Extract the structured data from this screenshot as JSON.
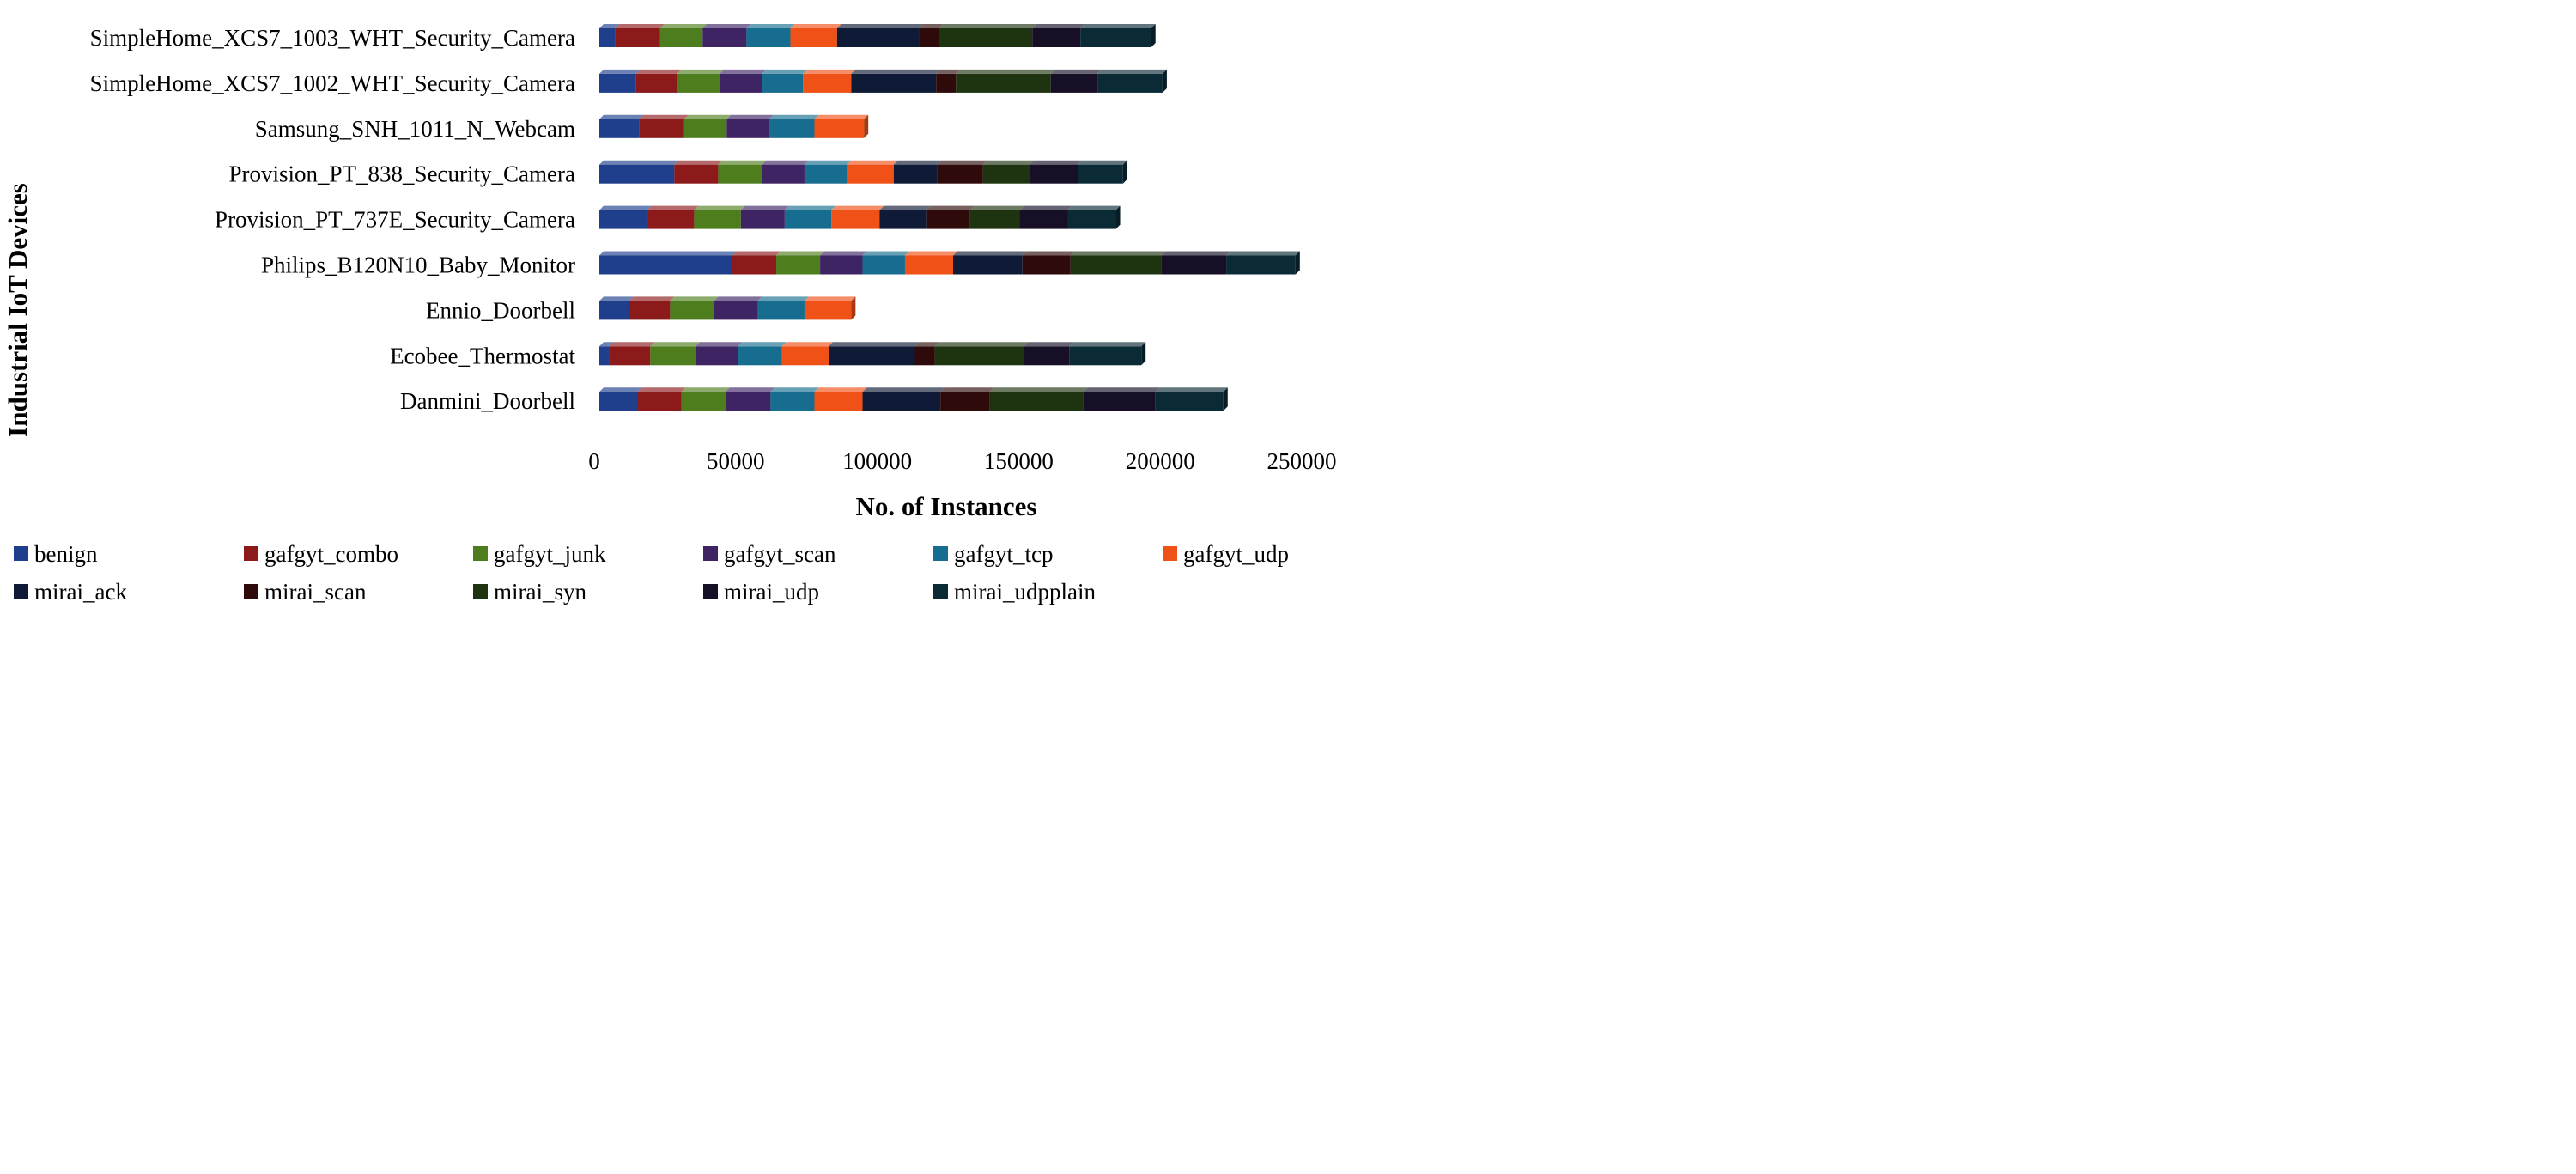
{
  "chart_data": {
    "type": "bar",
    "orientation": "horizontal",
    "stacked": true,
    "xlabel": "No. of Instances",
    "ylabel": "Industrial IoT Devices",
    "xlim": [
      0,
      250000
    ],
    "xticks": [
      "0",
      "50000",
      "100000",
      "150000",
      "200000",
      "250000"
    ],
    "grid": false,
    "legend_position": "bottom",
    "categories": [
      "SimpleHome_XCS7_1003_WHT_Security_Camera",
      "SimpleHome_XCS7_1002_WHT_Security_Camera",
      "Samsung_SNH_1011_N_Webcam",
      "Provision_PT_838_Security_Camera",
      "Provision_PT_737E_Security_Camera",
      "Philips_B120N10_Baby_Monitor",
      "Ennio_Doorbell",
      "Ecobee_Thermostat",
      "Danmini_Doorbell"
    ],
    "series": [
      {
        "name": "benign",
        "color": "#1f3f8c",
        "values": [
          5500,
          13000,
          14000,
          26500,
          17000,
          47000,
          10500,
          3500,
          13500
        ]
      },
      {
        "name": "gafgyt_combo",
        "color": "#8c1a1a",
        "values": [
          16000,
          14500,
          16000,
          15500,
          16500,
          15500,
          14500,
          14500,
          15500
        ]
      },
      {
        "name": "gafgyt_junk",
        "color": "#4e7d1e",
        "values": [
          15000,
          15000,
          15000,
          15500,
          16500,
          15500,
          15500,
          16000,
          15500
        ]
      },
      {
        "name": "gafgyt_scan",
        "color": "#3f2463",
        "values": [
          15500,
          15000,
          15000,
          15000,
          15500,
          15000,
          15500,
          15000,
          16000
        ]
      },
      {
        "name": "gafgyt_tcp",
        "color": "#176d8f",
        "values": [
          15500,
          14500,
          16000,
          15000,
          16500,
          15000,
          16500,
          15500,
          15500
        ]
      },
      {
        "name": "gafgyt_udp",
        "color": "#ef5116",
        "values": [
          16500,
          17000,
          17500,
          16500,
          17000,
          17000,
          16500,
          16500,
          17000
        ]
      },
      {
        "name": "mirai_ack",
        "color": "#0e1a36",
        "values": [
          29000,
          30000,
          0,
          15500,
          16500,
          24500,
          0,
          30500,
          27500
        ]
      },
      {
        "name": "mirai_scan",
        "color": "#2e0a0a",
        "values": [
          7000,
          7000,
          0,
          16000,
          15500,
          17000,
          0,
          7000,
          17500
        ]
      },
      {
        "name": "mirai_syn",
        "color": "#1e3310",
        "values": [
          33000,
          33500,
          0,
          16500,
          17500,
          32000,
          0,
          31500,
          33000
        ]
      },
      {
        "name": "mirai_udp",
        "color": "#160f26",
        "values": [
          17000,
          16500,
          0,
          17000,
          17000,
          23000,
          0,
          16000,
          25500
        ]
      },
      {
        "name": "mirai_udpplain",
        "color": "#0a2a36",
        "values": [
          25000,
          23000,
          0,
          16000,
          17000,
          24500,
          0,
          25500,
          24000
        ]
      }
    ]
  }
}
